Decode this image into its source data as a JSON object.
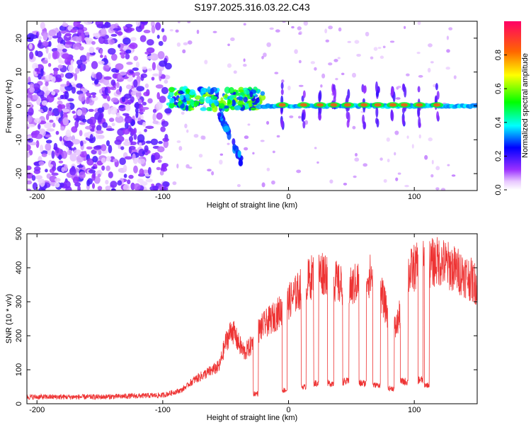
{
  "figure_title": "S197.2025.316.03.22.C43",
  "colors": {
    "snr_line": "#ee3333",
    "frame": "#000000"
  },
  "chart_data": [
    {
      "type": "heatmap",
      "title": "",
      "xlabel": "Height of straight line (km)",
      "ylabel": "Frequency (Hz)",
      "xlim": [
        -208,
        150
      ],
      "ylim": [
        -25,
        25
      ],
      "x_ticks": [
        -200,
        -100,
        0,
        100
      ],
      "x_tick_labels": [
        "-200",
        "-100",
        "0",
        "100"
      ],
      "y_ticks": [
        -20,
        -10,
        0,
        10,
        20
      ],
      "y_tick_labels": [
        "-20",
        "-10",
        "0",
        "10",
        "20"
      ],
      "colorbar": {
        "label": "Normalized spectral amplitude",
        "range": [
          0,
          1
        ],
        "ticks": [
          0.0,
          0.2,
          0.4,
          0.6,
          0.8
        ],
        "tick_labels": [
          "0.0",
          "0.2",
          "0.4",
          "0.6",
          "0.8"
        ]
      },
      "regions": [
        {
          "name": "noise",
          "x_range": [
            -208,
            -95
          ],
          "freq_range": [
            -25,
            25
          ],
          "amplitude": 0.15
        },
        {
          "name": "onset",
          "x_range": [
            -95,
            -20
          ],
          "freq_center": 2,
          "amplitude": 0.45
        },
        {
          "name": "tail",
          "x_range": [
            -55,
            -38
          ],
          "freq_range": [
            -16,
            -2
          ],
          "amplitude": 0.2
        },
        {
          "name": "carrier",
          "x_range": [
            -20,
            150
          ],
          "freq_center": 0,
          "amplitude": 0.85
        }
      ],
      "pulse_centers_km": [
        -5,
        12,
        25,
        36,
        47,
        60,
        71,
        83,
        92,
        104,
        118
      ]
    },
    {
      "type": "line",
      "title": "",
      "xlabel": "Height of straight line (km)",
      "ylabel": "SNR (10 * v/v)",
      "xlim": [
        -208,
        150
      ],
      "ylim": [
        0,
        500
      ],
      "x_ticks": [
        -200,
        -100,
        0,
        100
      ],
      "x_tick_labels": [
        "-200",
        "-100",
        "0",
        "100"
      ],
      "y_ticks": [
        0,
        100,
        200,
        300,
        400,
        500
      ],
      "y_tick_labels": [
        "0",
        "100",
        "200",
        "300",
        "400",
        "500"
      ],
      "series": [
        {
          "name": "SNR",
          "x": [
            -208,
            -150,
            -100,
            -85,
            -75,
            -65,
            -55,
            -50,
            -45,
            -40,
            -35,
            -30,
            -25,
            -20,
            -10,
            0,
            10,
            20,
            30,
            40,
            50,
            60,
            70,
            75,
            80,
            85,
            90,
            95,
            100,
            110,
            120,
            130,
            140,
            150
          ],
          "y": [
            20,
            20,
            25,
            40,
            70,
            90,
            110,
            180,
            220,
            180,
            150,
            170,
            210,
            230,
            260,
            300,
            340,
            380,
            390,
            350,
            340,
            380,
            370,
            310,
            250,
            220,
            280,
            380,
            400,
            410,
            420,
            400,
            380,
            350
          ],
          "dropouts": [
            {
              "x": [
                -28,
                -24
              ],
              "y": 30
            },
            {
              "x": [
                -5,
                -1
              ],
              "y": 40
            },
            {
              "x": [
                10,
                14
              ],
              "y": 50
            },
            {
              "x": [
                20,
                24
              ],
              "y": 60
            },
            {
              "x": [
                31,
                36
              ],
              "y": 60
            },
            {
              "x": [
                43,
                48
              ],
              "y": 65
            },
            {
              "x": [
                56,
                62
              ],
              "y": 60
            },
            {
              "x": [
                67,
                73
              ],
              "y": 55
            },
            {
              "x": [
                79,
                84
              ],
              "y": 45
            },
            {
              "x": [
                89,
                95
              ],
              "y": 65
            },
            {
              "x": [
                103,
                107
              ],
              "y": 70
            },
            {
              "x": [
                108,
                112
              ],
              "y": 55
            }
          ]
        }
      ]
    }
  ]
}
